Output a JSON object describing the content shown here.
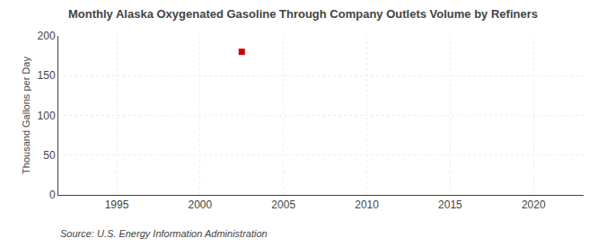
{
  "chart_data": {
    "type": "scatter",
    "title": "Monthly Alaska Oxygenated Gasoline Through Company Outlets Volume by Refiners",
    "ylabel": "Thousand Gallons per Day",
    "annotations": [
      "Source: U.S. Energy Information Administration"
    ],
    "x": [
      2002.5
    ],
    "values": [
      180
    ],
    "color": "#cc0000",
    "marker": "square",
    "xlim": [
      1991.5,
      2023
    ],
    "ylim": [
      0,
      200
    ],
    "xticks": [
      1995,
      2000,
      2005,
      2010,
      2015,
      2020
    ],
    "yticks": [
      0,
      50,
      100,
      150,
      200
    ],
    "grid": true
  }
}
